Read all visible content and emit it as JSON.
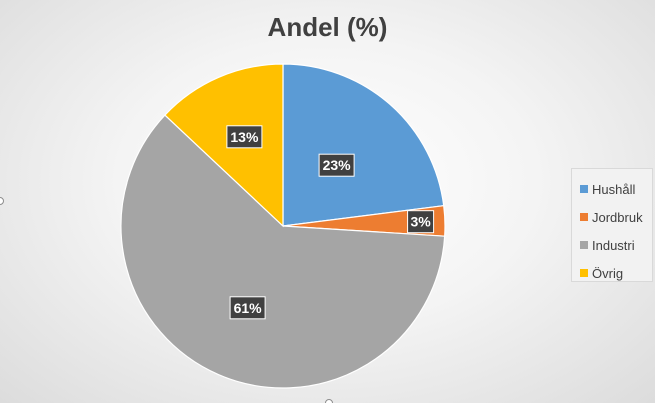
{
  "chart_data": {
    "type": "pie",
    "title": "Andel (%)",
    "categories": [
      "Hushåll",
      "Jordbruk",
      "Industri",
      "Övrig"
    ],
    "values": [
      23,
      3,
      61,
      13
    ],
    "data_labels": [
      "23%",
      "3%",
      "61%",
      "13%"
    ],
    "colors": [
      "#5b9bd5",
      "#ed7d31",
      "#a5a5a5",
      "#ffc000"
    ],
    "legend_position": "right",
    "start_angle": "12 o'clock, clockwise"
  }
}
